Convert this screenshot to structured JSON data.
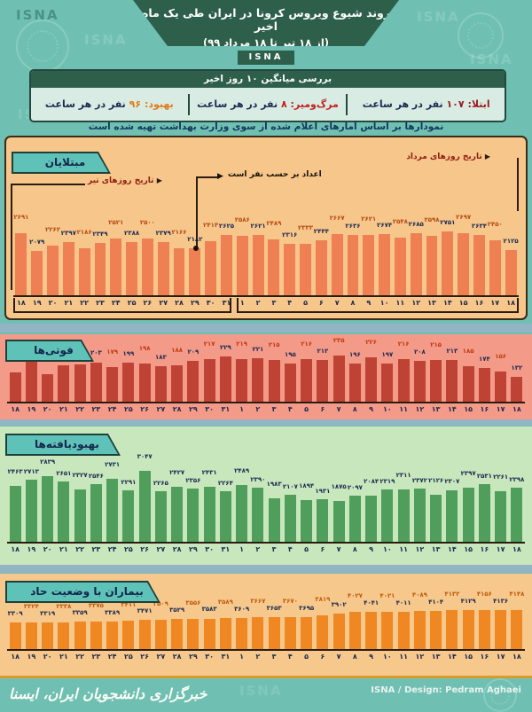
{
  "header": {
    "title": "روند شیوع ویروس کرونا در ایران طی یک ماه اخیر",
    "subtitle": "(از ۱۸ تیر تا ۱۸ مرداد ۹۹)",
    "logo": "ISNA"
  },
  "stats": {
    "title": "بررسی میانگین ۱۰ روز اخیر",
    "items": [
      {
        "label": "ابتلا:",
        "value": "۱۰۷",
        "unit": "نفر در هر ساعت",
        "color": "#9b1b1e"
      },
      {
        "label": "مرگ‌ومیر:",
        "value": "۸",
        "unit": "نفر در هر ساعت",
        "color": "#c2201f"
      },
      {
        "label": "بهبود:",
        "value": "۹۶",
        "unit": "نفر در هر ساعت",
        "color": "#e07b1a"
      }
    ],
    "note": "نمودارها بر اساس آمارهای اعلام شده از سوی وزارت بهداشت تهیه شده است"
  },
  "annotations": {
    "tir_axis": "تاریخ روزهای تیر",
    "unit_note": "اعداد بر حسب نفر است",
    "mordad_axis": "تاریخ روزهای مرداد"
  },
  "footer": {
    "left": "خبرگزاری دانشجویان ایران، ایسنا",
    "right": "ISNA / Design: Pedram Aghaei"
  },
  "watermark": "ISNA",
  "colors": {
    "background": "#6fc0b3",
    "header_green": "#2d5f4a",
    "panel1_bg": "#f7c68b",
    "panel2_bg": "#f49a88",
    "panel3_bg": "#c9e7bc",
    "panel4_bg": "#f7c88b",
    "dark_navy": "#1c2a52",
    "axis": "#2b1c10"
  },
  "chart_data": [
    {
      "type": "bar",
      "title": "مبتلایان",
      "unit": "نفر",
      "categories": [
        18,
        19,
        20,
        21,
        22,
        23,
        24,
        25,
        26,
        27,
        28,
        29,
        30,
        31,
        1,
        2,
        3,
        4,
        5,
        6,
        7,
        8,
        9,
        10,
        11,
        12,
        13,
        14,
        15,
        16,
        17,
        18
      ],
      "values": [
        2691,
        2079,
        2262,
        2397,
        2186,
        2349,
        2521,
        2388,
        2500,
        2379,
        2166,
        2182,
        2414,
        2625,
        2586,
        2621,
        2489,
        2316,
        2333,
        2444,
        2667,
        2636,
        2621,
        2674,
        2548,
        2685,
        2598,
        2751,
        2697,
        2634,
        2450,
        2125
      ],
      "bar_color": "#ee8054",
      "label_colors": [
        "#b54a12",
        "#1c2a52"
      ],
      "ylim": [
        0,
        2800
      ],
      "legend": "none",
      "grid": false
    },
    {
      "type": "bar",
      "title": "فوتی‌ها",
      "unit": "نفر",
      "categories": [
        18,
        19,
        20,
        21,
        22,
        23,
        24,
        25,
        26,
        27,
        28,
        29,
        30,
        31,
        1,
        2,
        3,
        4,
        5,
        6,
        7,
        8,
        9,
        10,
        11,
        12,
        13,
        14,
        15,
        16,
        17,
        18
      ],
      "values": [
        153,
        221,
        143,
        188,
        194,
        203,
        179,
        199,
        198,
        183,
        188,
        209,
        217,
        229,
        219,
        221,
        215,
        195,
        216,
        212,
        235,
        196,
        226,
        197,
        216,
        208,
        215,
        213,
        185,
        174,
        156,
        132
      ],
      "bar_color": "#bf4334",
      "label_colors": [
        "#c03a10",
        "#1c2a52"
      ],
      "ylim": [
        0,
        240
      ],
      "legend": "none",
      "grid": false
    },
    {
      "type": "bar",
      "title": "بهبودیافته‌ها",
      "unit": "نفر",
      "categories": [
        18,
        19,
        20,
        21,
        22,
        23,
        24,
        25,
        26,
        27,
        28,
        29,
        30,
        31,
        1,
        2,
        3,
        4,
        5,
        6,
        7,
        8,
        9,
        10,
        11,
        12,
        13,
        14,
        15,
        16,
        17,
        18
      ],
      "values": [
        2463,
        2713,
        2839,
        2651,
        2327,
        2546,
        2731,
        2291,
        3047,
        2265,
        2427,
        2356,
        2431,
        2264,
        2489,
        2390,
        1983,
        2107,
        1894,
        1931,
        1875,
        2097,
        2084,
        2319,
        2311,
        2372,
        2126,
        2307,
        2397,
        2531,
        2261,
        2398
      ],
      "bar_color": "#4f9e5c",
      "label_colors": [
        "#1c2a52",
        "#1c2a52"
      ],
      "ylim": [
        0,
        3100
      ],
      "legend": "none",
      "grid": false
    },
    {
      "type": "bar",
      "title": "بیماران با وضعیت حاد",
      "unit": "نفر",
      "categories": [
        18,
        19,
        20,
        21,
        22,
        23,
        24,
        25,
        26,
        27,
        28,
        29,
        30,
        31,
        1,
        2,
        3,
        4,
        5,
        6,
        7,
        8,
        9,
        10,
        11,
        12,
        13,
        14,
        15,
        16,
        17,
        18
      ],
      "values": [
        3309,
        3324,
        3319,
        3338,
        3359,
        3375,
        3389,
        3411,
        3471,
        3509,
        3529,
        3556,
        3583,
        3589,
        3609,
        3667,
        3653,
        3670,
        3695,
        3819,
        3902,
        4027,
        4041,
        4021,
        4011,
        4089,
        4104,
        4132,
        4129,
        4156,
        4136,
        4148
      ],
      "bar_color": "#ef8722",
      "label_colors": [
        "#1c2a52",
        "#bf5a10"
      ],
      "ylim": [
        0,
        4200
      ],
      "legend": "none",
      "grid": false
    }
  ]
}
